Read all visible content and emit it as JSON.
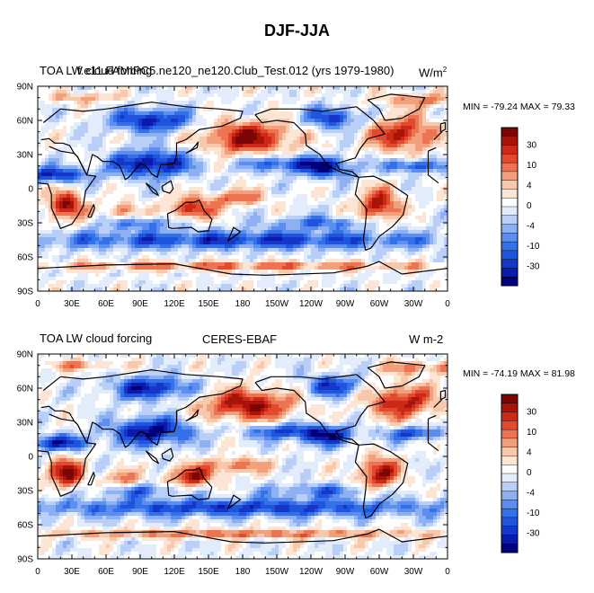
{
  "title": "DJF-JJA",
  "colorbar": {
    "colors": [
      "#00007a",
      "#0b1aa8",
      "#1437c8",
      "#1f55dc",
      "#3470e8",
      "#5b8eee",
      "#8cb0f2",
      "#b9cff8",
      "#e3ecfb",
      "#ffffff",
      "#fce5d5",
      "#f8c8ac",
      "#f2a07c",
      "#ec7452",
      "#e24a30",
      "#cc2a16",
      "#a81408",
      "#7d0505"
    ],
    "tick_labels": [
      "30",
      "10",
      "4",
      "0",
      "-4",
      "-10",
      "-30"
    ]
  },
  "panels": [
    {
      "left_title": "TOA LW cloud forcing",
      "center_title": "f.e11.FAMIPC5.ne120_ne120.Club_Test.012 (yrs 1979-1980)",
      "units": "W/m",
      "units_sup": "2",
      "min_max_text": "MIN = -79.24 MAX =  79.33",
      "x_ticks": [
        "0",
        "30E",
        "60E",
        "90E",
        "120E",
        "150E",
        "180",
        "150W",
        "120W",
        "90W",
        "60W",
        "30W",
        "0"
      ],
      "y_ticks": [
        "90N",
        "60N",
        "30N",
        "0",
        "30S",
        "60S",
        "90S"
      ]
    },
    {
      "left_title": "TOA LW cloud forcing",
      "center_title": "CERES-EBAF",
      "units": "W m-2",
      "units_sup": "",
      "min_max_text": "MIN = -74.19 MAX =  81.98",
      "x_ticks": [
        "0",
        "30E",
        "60E",
        "90E",
        "120E",
        "150E",
        "180",
        "150W",
        "120W",
        "90W",
        "60W",
        "30W",
        "0"
      ],
      "y_ticks": [
        "90N",
        "60N",
        "30N",
        "0",
        "30S",
        "60S",
        "90S"
      ]
    }
  ],
  "chart_data": [
    {
      "type": "heatmap",
      "title": "DJF-JJA",
      "subtitle": "f.e11.FAMIPC5.ne120_ne120.Club_Test.012 (yrs 1979-1980)",
      "variable": "TOA LW cloud forcing",
      "units": "W/m2",
      "xlim": [
        0,
        360
      ],
      "ylim": [
        -90,
        90
      ],
      "colorbar_levels": [
        -30,
        -10,
        -4,
        0,
        4,
        10,
        30
      ],
      "min": -79.24,
      "max": 79.33
    },
    {
      "type": "heatmap",
      "title": "DJF-JJA",
      "subtitle": "CERES-EBAF",
      "variable": "TOA LW cloud forcing",
      "units": "W m-2",
      "xlim": [
        0,
        360
      ],
      "ylim": [
        -90,
        90
      ],
      "colorbar_levels": [
        -30,
        -10,
        -4,
        0,
        4,
        10,
        30
      ],
      "min": -74.19,
      "max": 81.98
    }
  ]
}
